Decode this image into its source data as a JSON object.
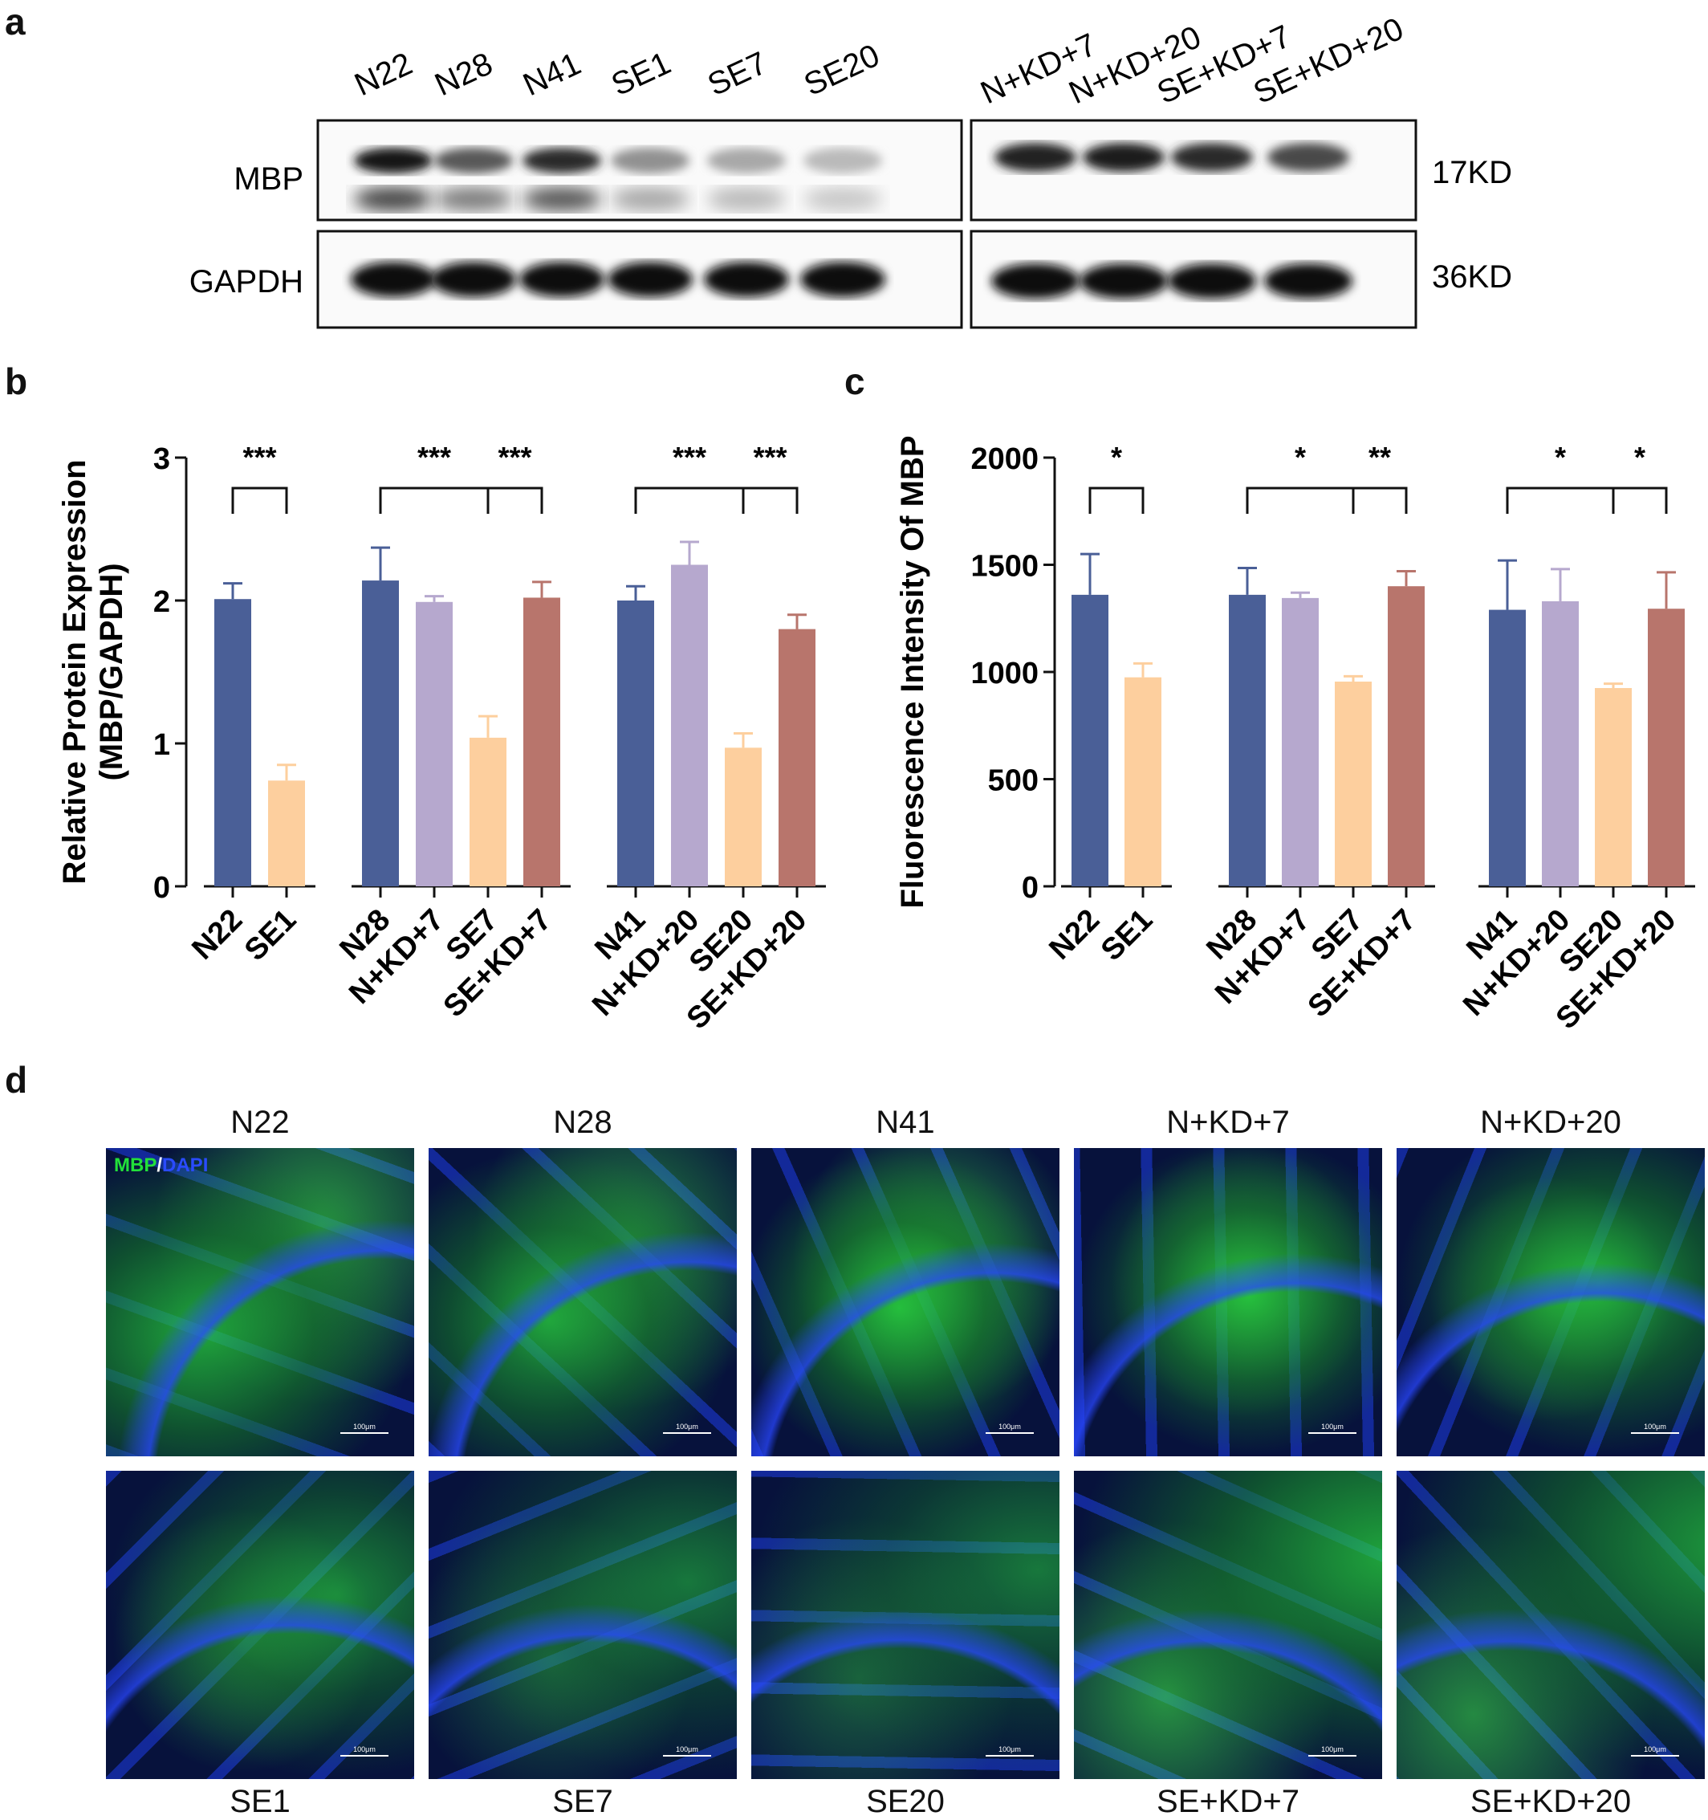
{
  "panels": {
    "a": "a",
    "b": "b",
    "c": "c",
    "d": "d"
  },
  "western": {
    "lanes_left": [
      "N22",
      "N28",
      "N41",
      "SE1",
      "SE7",
      "SE20"
    ],
    "lanes_right": [
      "N+KD+7",
      "N+KD+20",
      "SE+KD+7",
      "SE+KD+20"
    ],
    "proteins": [
      "MBP",
      "GAPDH"
    ],
    "sizes": [
      "17KD",
      "36KD"
    ],
    "mbp_intensity_left": [
      0.95,
      0.65,
      0.85,
      0.4,
      0.3,
      0.22
    ],
    "mbp_intensity_right": [
      0.9,
      0.92,
      0.85,
      0.72
    ]
  },
  "colors": {
    "N": "#4a5f97",
    "NKD": "#b6a8ce",
    "SE": "#fdcf9e",
    "SEKD": "#b8756c"
  },
  "chart_data": [
    {
      "type": "bar",
      "ylabel": "Relative Protein Expression (MBP/GAPDH)",
      "ylabel_lines": [
        "Relative Protein Expression",
        "(MBP/GAPDH)"
      ],
      "ylim": [
        0,
        3
      ],
      "yticks": [
        "0",
        "1",
        "2",
        "3"
      ],
      "groups": [
        {
          "categories": [
            "N22",
            "SE1"
          ],
          "values": [
            2.01,
            0.74
          ],
          "errors": [
            0.11,
            0.11
          ],
          "kinds": [
            "N",
            "SE"
          ]
        },
        {
          "categories": [
            "N28",
            "N+KD+7",
            "SE7",
            "SE+KD+7"
          ],
          "values": [
            2.14,
            1.99,
            1.04,
            2.02
          ],
          "errors": [
            0.23,
            0.04,
            0.15,
            0.11
          ],
          "kinds": [
            "N",
            "NKD",
            "SE",
            "SEKD"
          ]
        },
        {
          "categories": [
            "N41",
            "N+KD+20",
            "SE20",
            "SE+KD+20"
          ],
          "values": [
            2.0,
            2.25,
            0.97,
            1.8
          ],
          "errors": [
            0.1,
            0.16,
            0.1,
            0.1
          ],
          "kinds": [
            "N",
            "NKD",
            "SE",
            "SEKD"
          ]
        }
      ],
      "significance": [
        {
          "group": 0,
          "from": 0,
          "to": 1,
          "label": "***"
        },
        {
          "group": 1,
          "from": 0,
          "to": 2,
          "label": "***"
        },
        {
          "group": 1,
          "from": 2,
          "to": 3,
          "label": "***"
        },
        {
          "group": 2,
          "from": 0,
          "to": 2,
          "label": "***"
        },
        {
          "group": 2,
          "from": 2,
          "to": 3,
          "label": "***"
        }
      ]
    },
    {
      "type": "bar",
      "ylabel": "Fluorescence Intensity Of MBP",
      "ylabel_lines": [
        "Fluorescence Intensity Of MBP"
      ],
      "ylim": [
        0,
        2000
      ],
      "yticks": [
        "0",
        "500",
        "1000",
        "1500",
        "2000"
      ],
      "groups": [
        {
          "categories": [
            "N22",
            "SE1"
          ],
          "values": [
            1360,
            975
          ],
          "errors": [
            190,
            65
          ],
          "kinds": [
            "N",
            "SE"
          ]
        },
        {
          "categories": [
            "N28",
            "N+KD+7",
            "SE7",
            "SE+KD+7"
          ],
          "values": [
            1360,
            1345,
            955,
            1400
          ],
          "errors": [
            125,
            25,
            25,
            70
          ],
          "kinds": [
            "N",
            "NKD",
            "SE",
            "SEKD"
          ]
        },
        {
          "categories": [
            "N41",
            "N+KD+20",
            "SE20",
            "SE+KD+20"
          ],
          "values": [
            1290,
            1330,
            925,
            1295
          ],
          "errors": [
            230,
            150,
            20,
            170
          ],
          "kinds": [
            "N",
            "NKD",
            "SE",
            "SEKD"
          ]
        }
      ],
      "significance": [
        {
          "group": 0,
          "from": 0,
          "to": 1,
          "label": "*"
        },
        {
          "group": 1,
          "from": 0,
          "to": 2,
          "label": "*"
        },
        {
          "group": 1,
          "from": 2,
          "to": 3,
          "label": "**"
        },
        {
          "group": 2,
          "from": 0,
          "to": 2,
          "label": "*"
        },
        {
          "group": 2,
          "from": 2,
          "to": 3,
          "label": "*"
        }
      ]
    }
  ],
  "microscopy": {
    "stain_mbp": "MBP",
    "stain_sep": "/",
    "stain_dapi": "DAPI",
    "scale": "100μm",
    "top": [
      {
        "label": "N22",
        "green": 0.75
      },
      {
        "label": "N28",
        "green": 0.65
      },
      {
        "label": "N41",
        "green": 0.8
      },
      {
        "label": "N+KD+7",
        "green": 0.7
      },
      {
        "label": "N+KD+20",
        "green": 0.7
      }
    ],
    "bottom": [
      {
        "label": "SE1",
        "green": 0.45
      },
      {
        "label": "SE7",
        "green": 0.3
      },
      {
        "label": "SE20",
        "green": 0.3
      },
      {
        "label": "SE+KD+7",
        "green": 0.75
      },
      {
        "label": "SE+KD+20",
        "green": 0.65
      }
    ]
  }
}
